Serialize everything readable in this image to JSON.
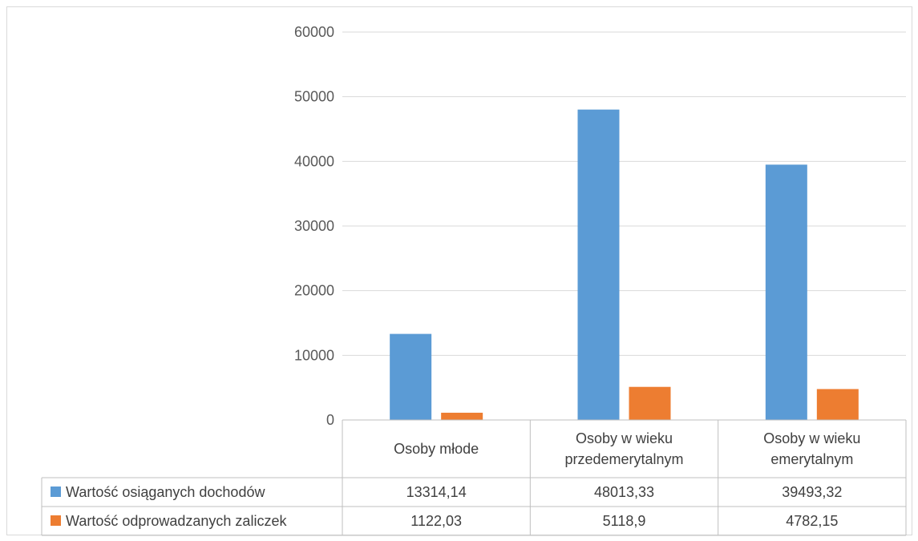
{
  "chart_data": {
    "type": "bar",
    "categories": [
      [
        "Osoby młode"
      ],
      [
        "Osoby w wieku",
        "przedemerytalnym"
      ],
      [
        "Osoby w wieku",
        "emerytalnym"
      ]
    ],
    "series": [
      {
        "name": "Wartość osiąganych dochodów",
        "color": "#5B9BD5",
        "values": [
          13314.14,
          48013.33,
          39493.32
        ],
        "labels": [
          "13314,14",
          "48013,33",
          "39493,32"
        ]
      },
      {
        "name": "Wartość odprowadzanych zaliczek",
        "color": "#ED7D31",
        "values": [
          1122.03,
          5118.9,
          4782.15
        ],
        "labels": [
          "1122,03",
          "5118,9",
          "4782,15"
        ]
      }
    ],
    "ylim": [
      0,
      60000
    ],
    "yticks": [
      0,
      10000,
      20000,
      30000,
      40000,
      50000,
      60000
    ],
    "grid": true,
    "legend": "data-table"
  }
}
